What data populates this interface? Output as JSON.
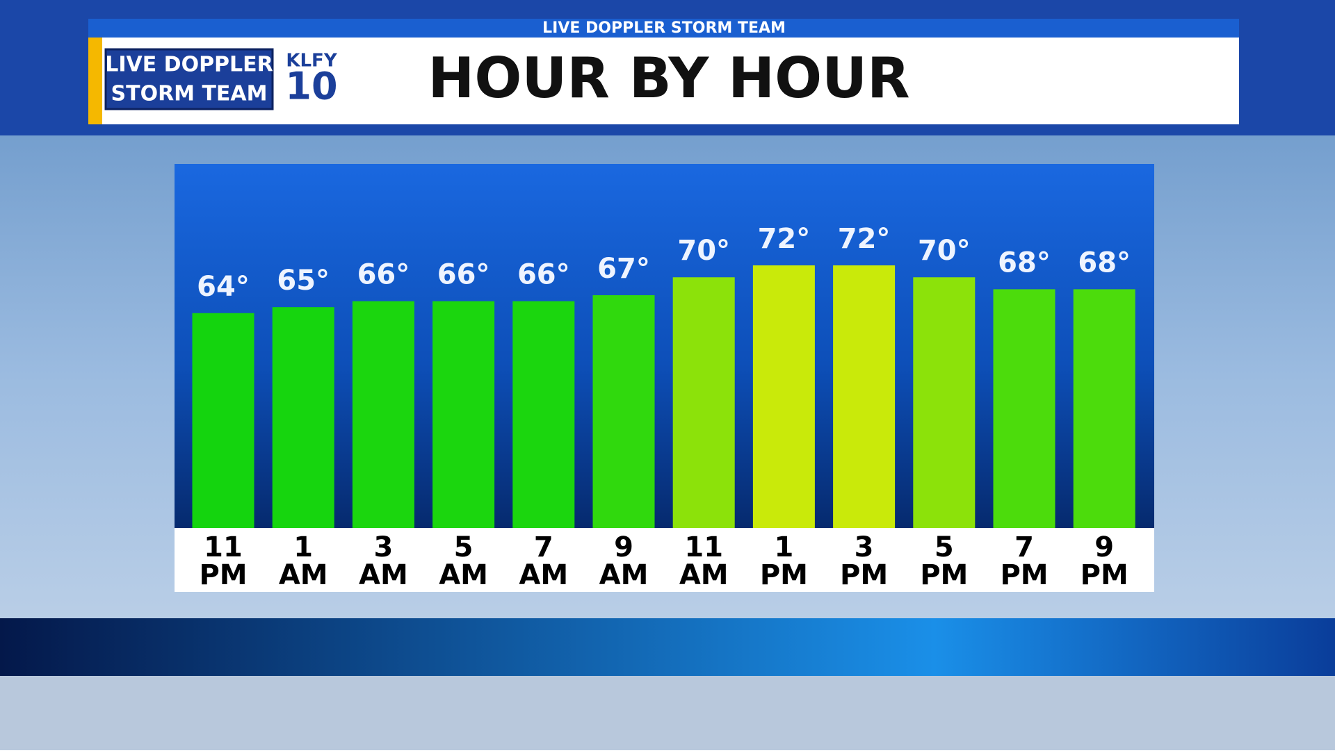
{
  "header": {
    "strip": "LIVE DOPPLER STORM TEAM",
    "logo_line1": "LIVE DOPPLER",
    "logo_line2": "STORM TEAM",
    "station": "KLFY",
    "channel": "10",
    "title": "HOUR BY HOUR"
  },
  "chart_data": {
    "type": "bar",
    "categories": [
      [
        "11",
        "PM"
      ],
      [
        "1",
        "AM"
      ],
      [
        "3",
        "AM"
      ],
      [
        "5",
        "AM"
      ],
      [
        "7",
        "AM"
      ],
      [
        "9",
        "AM"
      ],
      [
        "11",
        "AM"
      ],
      [
        "1",
        "PM"
      ],
      [
        "3",
        "PM"
      ],
      [
        "5",
        "PM"
      ],
      [
        "7",
        "PM"
      ],
      [
        "9",
        "PM"
      ]
    ],
    "values": [
      64,
      65,
      66,
      66,
      66,
      67,
      70,
      72,
      72,
      70,
      68,
      68
    ],
    "value_labels": [
      "64°",
      "65°",
      "66°",
      "66°",
      "66°",
      "67°",
      "70°",
      "72°",
      "72°",
      "70°",
      "68°",
      "68°"
    ],
    "colors": [
      "#14d40e",
      "#16d50e",
      "#1bd60e",
      "#1bd60e",
      "#1bd60e",
      "#30d90d",
      "#8ce20a",
      "#c9ea0a",
      "#c9ea0a",
      "#8ce20a",
      "#4cdc0c",
      "#4cdc0c"
    ],
    "ylim": [
      28,
      89
    ]
  }
}
